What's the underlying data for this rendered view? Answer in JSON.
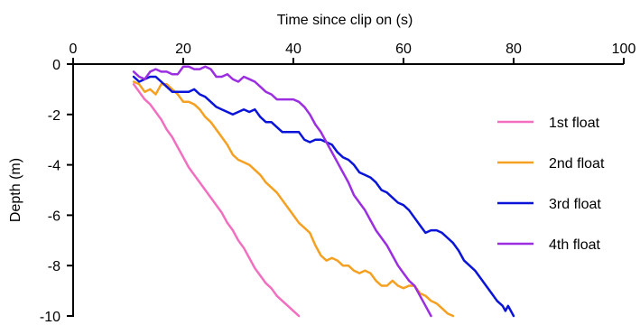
{
  "chart_data": {
    "type": "line",
    "xlabel": "Time since clip on (s)",
    "ylabel": "Depth (m)",
    "xlim": [
      0,
      100
    ],
    "ylim": [
      -10,
      0
    ],
    "x_ticks": [
      0,
      20,
      40,
      60,
      80,
      100
    ],
    "y_ticks": [
      0,
      -2,
      -4,
      -6,
      -8,
      -10
    ],
    "x_axis_position": "top",
    "grid": false,
    "legend_position": "right",
    "series": [
      {
        "name": "1st float",
        "color": "#f26fc0",
        "points": [
          [
            11,
            -0.8
          ],
          [
            12,
            -1.1
          ],
          [
            13,
            -1.4
          ],
          [
            14,
            -1.6
          ],
          [
            15,
            -1.9
          ],
          [
            16,
            -2.2
          ],
          [
            17,
            -2.6
          ],
          [
            18,
            -2.9
          ],
          [
            19,
            -3.3
          ],
          [
            20,
            -3.7
          ],
          [
            21,
            -4.1
          ],
          [
            22,
            -4.4
          ],
          [
            23,
            -4.7
          ],
          [
            24,
            -5.0
          ],
          [
            25,
            -5.3
          ],
          [
            26,
            -5.6
          ],
          [
            27,
            -5.9
          ],
          [
            28,
            -6.3
          ],
          [
            29,
            -6.6
          ],
          [
            30,
            -7.0
          ],
          [
            31,
            -7.3
          ],
          [
            32,
            -7.7
          ],
          [
            33,
            -8.1
          ],
          [
            34,
            -8.4
          ],
          [
            35,
            -8.7
          ],
          [
            36,
            -8.9
          ],
          [
            37,
            -9.2
          ],
          [
            38,
            -9.4
          ],
          [
            39,
            -9.6
          ],
          [
            40,
            -9.8
          ],
          [
            41,
            -10.0
          ]
        ]
      },
      {
        "name": "2nd float",
        "color": "#f5a020",
        "points": [
          [
            11,
            -0.7
          ],
          [
            12,
            -0.8
          ],
          [
            13,
            -1.1
          ],
          [
            14,
            -1.0
          ],
          [
            15,
            -1.2
          ],
          [
            16,
            -0.8
          ],
          [
            17,
            -0.8
          ],
          [
            18,
            -1.0
          ],
          [
            19,
            -1.2
          ],
          [
            20,
            -1.5
          ],
          [
            21,
            -1.5
          ],
          [
            22,
            -1.6
          ],
          [
            23,
            -1.8
          ],
          [
            24,
            -2.1
          ],
          [
            25,
            -2.3
          ],
          [
            26,
            -2.6
          ],
          [
            27,
            -2.9
          ],
          [
            28,
            -3.2
          ],
          [
            29,
            -3.6
          ],
          [
            30,
            -3.8
          ],
          [
            31,
            -3.9
          ],
          [
            32,
            -4.0
          ],
          [
            33,
            -4.2
          ],
          [
            34,
            -4.4
          ],
          [
            35,
            -4.7
          ],
          [
            36,
            -4.9
          ],
          [
            37,
            -5.1
          ],
          [
            38,
            -5.4
          ],
          [
            39,
            -5.7
          ],
          [
            40,
            -6.0
          ],
          [
            41,
            -6.3
          ],
          [
            42,
            -6.5
          ],
          [
            43,
            -6.7
          ],
          [
            44,
            -7.2
          ],
          [
            45,
            -7.6
          ],
          [
            46,
            -7.8
          ],
          [
            47,
            -7.7
          ],
          [
            48,
            -7.8
          ],
          [
            49,
            -8.0
          ],
          [
            50,
            -8.0
          ],
          [
            51,
            -8.2
          ],
          [
            52,
            -8.3
          ],
          [
            53,
            -8.2
          ],
          [
            54,
            -8.3
          ],
          [
            55,
            -8.6
          ],
          [
            56,
            -8.8
          ],
          [
            57,
            -8.8
          ],
          [
            58,
            -8.6
          ],
          [
            59,
            -8.8
          ],
          [
            60,
            -8.9
          ],
          [
            61,
            -8.8
          ],
          [
            62,
            -8.8
          ],
          [
            63,
            -9.1
          ],
          [
            64,
            -9.2
          ],
          [
            65,
            -9.4
          ],
          [
            66,
            -9.5
          ],
          [
            67,
            -9.7
          ],
          [
            68,
            -9.9
          ],
          [
            69,
            -10.0
          ]
        ]
      },
      {
        "name": "3rd float",
        "color": "#0a14d8",
        "points": [
          [
            11,
            -0.5
          ],
          [
            12,
            -0.7
          ],
          [
            13,
            -0.6
          ],
          [
            14,
            -0.5
          ],
          [
            15,
            -0.5
          ],
          [
            16,
            -0.7
          ],
          [
            17,
            -0.9
          ],
          [
            18,
            -1.1
          ],
          [
            19,
            -1.1
          ],
          [
            20,
            -1.1
          ],
          [
            21,
            -1.1
          ],
          [
            22,
            -1.0
          ],
          [
            23,
            -1.2
          ],
          [
            24,
            -1.3
          ],
          [
            25,
            -1.5
          ],
          [
            26,
            -1.7
          ],
          [
            27,
            -1.8
          ],
          [
            28,
            -1.9
          ],
          [
            29,
            -2.0
          ],
          [
            30,
            -1.9
          ],
          [
            31,
            -1.8
          ],
          [
            32,
            -1.9
          ],
          [
            33,
            -1.8
          ],
          [
            34,
            -2.1
          ],
          [
            35,
            -2.3
          ],
          [
            36,
            -2.3
          ],
          [
            37,
            -2.5
          ],
          [
            38,
            -2.7
          ],
          [
            39,
            -2.7
          ],
          [
            40,
            -2.7
          ],
          [
            41,
            -2.7
          ],
          [
            42,
            -3.0
          ],
          [
            43,
            -3.1
          ],
          [
            44,
            -3.0
          ],
          [
            45,
            -3.0
          ],
          [
            46,
            -3.1
          ],
          [
            47,
            -3.2
          ],
          [
            48,
            -3.5
          ],
          [
            49,
            -3.7
          ],
          [
            50,
            -3.8
          ],
          [
            51,
            -4.0
          ],
          [
            52,
            -4.3
          ],
          [
            53,
            -4.4
          ],
          [
            54,
            -4.5
          ],
          [
            55,
            -4.7
          ],
          [
            56,
            -5.0
          ],
          [
            57,
            -5.1
          ],
          [
            58,
            -5.3
          ],
          [
            59,
            -5.5
          ],
          [
            60,
            -5.6
          ],
          [
            61,
            -5.8
          ],
          [
            62,
            -6.1
          ],
          [
            63,
            -6.4
          ],
          [
            64,
            -6.7
          ],
          [
            65,
            -6.6
          ],
          [
            66,
            -6.6
          ],
          [
            67,
            -6.7
          ],
          [
            68,
            -6.9
          ],
          [
            69,
            -7.1
          ],
          [
            70,
            -7.4
          ],
          [
            71,
            -7.8
          ],
          [
            72,
            -8.0
          ],
          [
            73,
            -8.2
          ],
          [
            74,
            -8.5
          ],
          [
            75,
            -8.8
          ],
          [
            76,
            -9.1
          ],
          [
            77,
            -9.4
          ],
          [
            78,
            -9.6
          ],
          [
            78.5,
            -9.8
          ],
          [
            79,
            -9.6
          ],
          [
            80,
            -10.0
          ]
        ]
      },
      {
        "name": "4th float",
        "color": "#9b2ee0",
        "points": [
          [
            11,
            -0.3
          ],
          [
            12,
            -0.5
          ],
          [
            13,
            -0.6
          ],
          [
            14,
            -0.3
          ],
          [
            15,
            -0.2
          ],
          [
            16,
            -0.3
          ],
          [
            17,
            -0.3
          ],
          [
            18,
            -0.4
          ],
          [
            19,
            -0.4
          ],
          [
            20,
            -0.1
          ],
          [
            21,
            -0.1
          ],
          [
            22,
            -0.2
          ],
          [
            23,
            -0.2
          ],
          [
            24,
            -0.1
          ],
          [
            25,
            -0.2
          ],
          [
            26,
            -0.5
          ],
          [
            27,
            -0.5
          ],
          [
            28,
            -0.4
          ],
          [
            29,
            -0.6
          ],
          [
            30,
            -0.7
          ],
          [
            31,
            -0.5
          ],
          [
            32,
            -0.6
          ],
          [
            33,
            -0.7
          ],
          [
            34,
            -0.9
          ],
          [
            35,
            -1.1
          ],
          [
            36,
            -1.2
          ],
          [
            37,
            -1.4
          ],
          [
            38,
            -1.4
          ],
          [
            39,
            -1.4
          ],
          [
            40,
            -1.4
          ],
          [
            41,
            -1.5
          ],
          [
            42,
            -1.7
          ],
          [
            43,
            -2.0
          ],
          [
            44,
            -2.4
          ],
          [
            45,
            -2.7
          ],
          [
            46,
            -3.1
          ],
          [
            47,
            -3.5
          ],
          [
            48,
            -3.9
          ],
          [
            49,
            -4.3
          ],
          [
            50,
            -4.7
          ],
          [
            51,
            -5.2
          ],
          [
            52,
            -5.5
          ],
          [
            53,
            -5.8
          ],
          [
            54,
            -6.2
          ],
          [
            55,
            -6.6
          ],
          [
            56,
            -6.9
          ],
          [
            57,
            -7.2
          ],
          [
            58,
            -7.6
          ],
          [
            59,
            -8.0
          ],
          [
            60,
            -8.3
          ],
          [
            61,
            -8.6
          ],
          [
            62,
            -8.8
          ],
          [
            63,
            -9.2
          ],
          [
            64,
            -9.6
          ],
          [
            65,
            -10.0
          ]
        ]
      }
    ]
  }
}
